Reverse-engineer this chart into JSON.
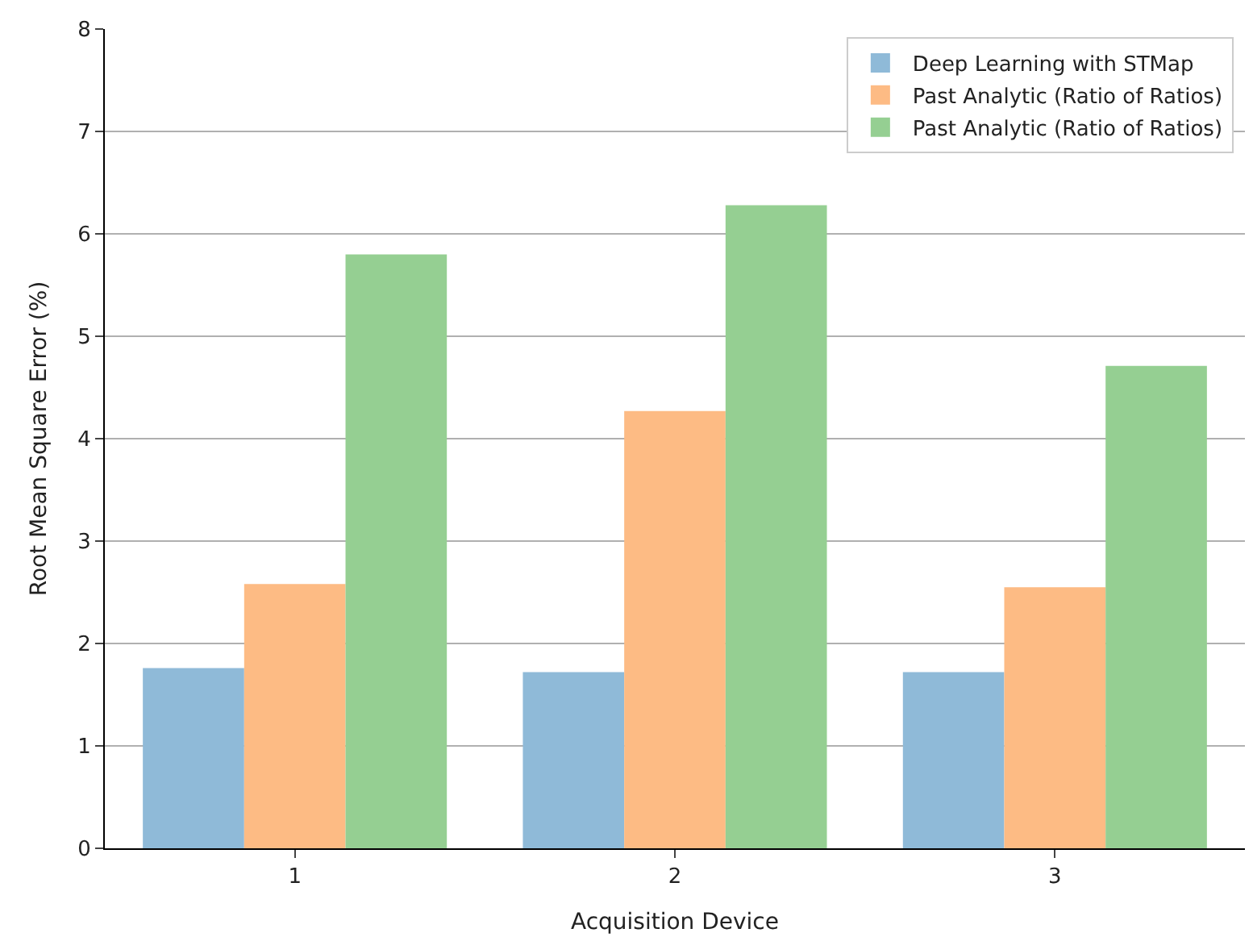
{
  "chart_data": {
    "type": "bar",
    "xlabel": "Acquisition Device",
    "ylabel": "Root Mean Square Error (%)",
    "categories": [
      "1",
      "2",
      "3"
    ],
    "series": [
      {
        "name": "Deep Learning with STMap",
        "color": "#8fbad8",
        "values": [
          1.76,
          1.72,
          1.72
        ]
      },
      {
        "name": "Past Analytic (Ratio of Ratios)",
        "color": "#fdbb84",
        "values": [
          2.58,
          4.27,
          2.55
        ]
      },
      {
        "name": "Past Analytic (Ratio of Ratios)",
        "color": "#95cf92",
        "values": [
          5.8,
          6.28,
          4.71
        ]
      }
    ],
    "ylim": [
      0,
      8
    ],
    "yticks": [
      0,
      1,
      2,
      3,
      4,
      5,
      6,
      7,
      8
    ],
    "grid": "y",
    "legend": "top right"
  }
}
